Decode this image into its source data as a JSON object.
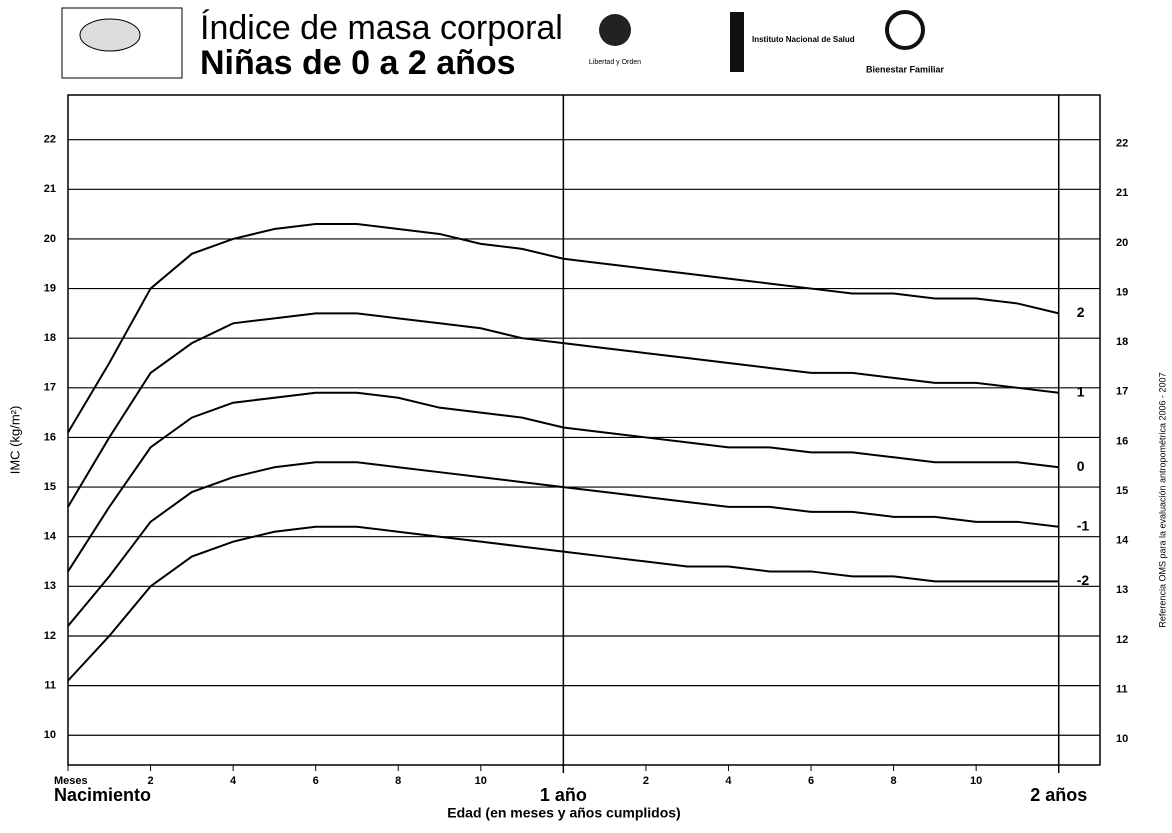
{
  "header": {
    "logo_1": "Libertad y Orden",
    "logo_2": "Instituto Nacional de Salud",
    "logo_3": "Bienestar Familiar",
    "side_note": "Referencia OMS para la evaluación antropométrica 2006 - 2007"
  },
  "chart_data": {
    "type": "line",
    "title": "Índice de masa corporal",
    "subtitle": "Niñas de 0 a 2 años",
    "y_label": "IMC (kg/m²)",
    "x_label": "Edad (en meses y años cumplidos)",
    "x": [
      0,
      1,
      2,
      3,
      4,
      5,
      6,
      7,
      8,
      9,
      10,
      11,
      12,
      13,
      14,
      15,
      16,
      17,
      18,
      19,
      20,
      21,
      22,
      23,
      24
    ],
    "series": [
      {
        "name": "2",
        "color": "#000000",
        "values": [
          16.1,
          17.5,
          19.0,
          19.7,
          20.0,
          20.2,
          20.3,
          20.3,
          20.2,
          20.1,
          19.9,
          19.8,
          19.6,
          19.5,
          19.4,
          19.3,
          19.2,
          19.1,
          19.0,
          18.9,
          18.9,
          18.8,
          18.8,
          18.7,
          18.5
        ]
      },
      {
        "name": "1",
        "color": "#000000",
        "values": [
          14.6,
          16.0,
          17.3,
          17.9,
          18.3,
          18.4,
          18.5,
          18.5,
          18.4,
          18.3,
          18.2,
          18.0,
          17.9,
          17.8,
          17.7,
          17.6,
          17.5,
          17.4,
          17.3,
          17.3,
          17.2,
          17.1,
          17.1,
          17.0,
          16.9
        ]
      },
      {
        "name": "0",
        "color": "#000000",
        "values": [
          13.3,
          14.6,
          15.8,
          16.4,
          16.7,
          16.8,
          16.9,
          16.9,
          16.8,
          16.6,
          16.5,
          16.4,
          16.2,
          16.1,
          16.0,
          15.9,
          15.8,
          15.8,
          15.7,
          15.7,
          15.6,
          15.5,
          15.5,
          15.5,
          15.4
        ]
      },
      {
        "name": "-1",
        "color": "#000000",
        "values": [
          12.2,
          13.2,
          14.3,
          14.9,
          15.2,
          15.4,
          15.5,
          15.5,
          15.4,
          15.3,
          15.2,
          15.1,
          15.0,
          14.9,
          14.8,
          14.7,
          14.6,
          14.6,
          14.5,
          14.5,
          14.4,
          14.4,
          14.3,
          14.3,
          14.2
        ]
      },
      {
        "name": "-2",
        "color": "#000000",
        "values": [
          11.1,
          12.0,
          13.0,
          13.6,
          13.9,
          14.1,
          14.2,
          14.2,
          14.1,
          14.0,
          13.9,
          13.8,
          13.7,
          13.6,
          13.5,
          13.4,
          13.4,
          13.3,
          13.3,
          13.2,
          13.2,
          13.1,
          13.1,
          13.1,
          13.1
        ]
      }
    ],
    "xlim": [
      0,
      25
    ],
    "xticks": [
      {
        "value": 0,
        "label": "Meses"
      },
      2,
      4,
      6,
      8,
      10,
      {
        "value": 14,
        "label": "2"
      },
      {
        "value": 16,
        "label": "4"
      },
      {
        "value": 18,
        "label": "6"
      },
      {
        "value": 20,
        "label": "8"
      },
      {
        "value": 22,
        "label": "10"
      }
    ],
    "x_milestones": [
      {
        "value": 0,
        "label": "Nacimiento"
      },
      {
        "value": 12,
        "label": "1 año"
      },
      {
        "value": 24,
        "label": "2 años"
      }
    ],
    "ylim": [
      9.4,
      22.9
    ],
    "yticks": [
      10,
      11,
      12,
      13,
      14,
      15,
      16,
      17,
      18,
      19,
      20,
      21,
      22
    ],
    "grid": true
  }
}
